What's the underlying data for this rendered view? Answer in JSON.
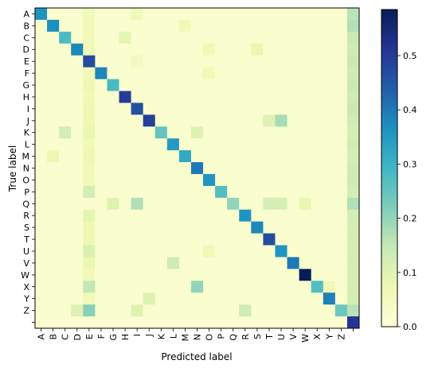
{
  "chart_data": {
    "type": "heatmap",
    "title": "",
    "xlabel": "Predicted label",
    "ylabel": "True label",
    "x_categories": [
      "A",
      "B",
      "C",
      "D",
      "E",
      "F",
      "G",
      "H",
      "I",
      "J",
      "K",
      "L",
      "M",
      "N",
      "O",
      "P",
      "Q",
      "R",
      "S",
      "T",
      "U",
      "V",
      "W",
      "X",
      "Y",
      "Z",
      ""
    ],
    "y_categories": [
      "A",
      "B",
      "C",
      "D",
      "E",
      "F",
      "G",
      "H",
      "I",
      "J",
      "K",
      "L",
      "M",
      "N",
      "O",
      "P",
      "Q",
      "R",
      "S",
      "T",
      "U",
      "V",
      "W",
      "X",
      "Y",
      "Z",
      ""
    ],
    "colorbar": {
      "colormap": "YlGnBu",
      "min": 0.0,
      "max": 0.585,
      "ticks": [
        0.0,
        0.1,
        0.2,
        0.3,
        0.4,
        0.5
      ],
      "tick_labels": [
        "0.0",
        "0.1",
        "0.2",
        "0.3",
        "0.4",
        "0.5"
      ]
    },
    "background_value": 0.02,
    "diagonal": [
      0.36,
      0.37,
      0.28,
      0.38,
      0.47,
      0.38,
      0.28,
      0.5,
      0.46,
      0.49,
      0.25,
      0.35,
      0.32,
      0.4,
      0.36,
      0.27,
      0.2,
      0.36,
      0.38,
      0.47,
      0.36,
      0.4,
      0.585,
      0.27,
      0.39,
      0.24,
      0.51
    ],
    "off_diagonal": [
      {
        "row": "A",
        "col": "E",
        "value": 0.06
      },
      {
        "row": "A",
        "col": "I",
        "value": 0.06
      },
      {
        "row": "A",
        "col": "",
        "value": 0.16
      },
      {
        "row": "B",
        "col": "E",
        "value": 0.06
      },
      {
        "row": "B",
        "col": "M",
        "value": 0.06
      },
      {
        "row": "B",
        "col": "",
        "value": 0.17
      },
      {
        "row": "C",
        "col": "E",
        "value": 0.06
      },
      {
        "row": "C",
        "col": "H",
        "value": 0.09
      },
      {
        "row": "C",
        "col": "",
        "value": 0.14
      },
      {
        "row": "D",
        "col": "E",
        "value": 0.06
      },
      {
        "row": "D",
        "col": "O",
        "value": 0.06
      },
      {
        "row": "D",
        "col": "S",
        "value": 0.08
      },
      {
        "row": "D",
        "col": "",
        "value": 0.13
      },
      {
        "row": "E",
        "col": "I",
        "value": 0.05
      },
      {
        "row": "E",
        "col": "",
        "value": 0.14
      },
      {
        "row": "F",
        "col": "E",
        "value": 0.06
      },
      {
        "row": "F",
        "col": "O",
        "value": 0.06
      },
      {
        "row": "F",
        "col": "",
        "value": 0.13
      },
      {
        "row": "G",
        "col": "E",
        "value": 0.07
      },
      {
        "row": "G",
        "col": "",
        "value": 0.14
      },
      {
        "row": "H",
        "col": "E",
        "value": 0.06
      },
      {
        "row": "H",
        "col": "",
        "value": 0.13
      },
      {
        "row": "I",
        "col": "E",
        "value": 0.07
      },
      {
        "row": "I",
        "col": "",
        "value": 0.14
      },
      {
        "row": "J",
        "col": "E",
        "value": 0.07
      },
      {
        "row": "J",
        "col": "T",
        "value": 0.1
      },
      {
        "row": "J",
        "col": "U",
        "value": 0.18
      },
      {
        "row": "J",
        "col": "",
        "value": 0.13
      },
      {
        "row": "K",
        "col": "C",
        "value": 0.12
      },
      {
        "row": "K",
        "col": "E",
        "value": 0.08
      },
      {
        "row": "K",
        "col": "N",
        "value": 0.1
      },
      {
        "row": "K",
        "col": "",
        "value": 0.12
      },
      {
        "row": "L",
        "col": "E",
        "value": 0.06
      },
      {
        "row": "L",
        "col": "",
        "value": 0.13
      },
      {
        "row": "M",
        "col": "B",
        "value": 0.07
      },
      {
        "row": "M",
        "col": "E",
        "value": 0.07
      },
      {
        "row": "M",
        "col": "",
        "value": 0.12
      },
      {
        "row": "N",
        "col": "E",
        "value": 0.06
      },
      {
        "row": "N",
        "col": "",
        "value": 0.13
      },
      {
        "row": "O",
        "col": "E",
        "value": 0.06
      },
      {
        "row": "O",
        "col": "",
        "value": 0.13
      },
      {
        "row": "P",
        "col": "E",
        "value": 0.12
      },
      {
        "row": "P",
        "col": "",
        "value": 0.12
      },
      {
        "row": "Q",
        "col": "G",
        "value": 0.1
      },
      {
        "row": "Q",
        "col": "I",
        "value": 0.17
      },
      {
        "row": "Q",
        "col": "T",
        "value": 0.12
      },
      {
        "row": "Q",
        "col": "U",
        "value": 0.12
      },
      {
        "row": "Q",
        "col": "W",
        "value": 0.08
      },
      {
        "row": "Q",
        "col": "",
        "value": 0.17
      },
      {
        "row": "R",
        "col": "E",
        "value": 0.09
      },
      {
        "row": "R",
        "col": "",
        "value": 0.12
      },
      {
        "row": "S",
        "col": "E",
        "value": 0.07
      },
      {
        "row": "S",
        "col": "",
        "value": 0.12
      },
      {
        "row": "T",
        "col": "E",
        "value": 0.07
      },
      {
        "row": "T",
        "col": "",
        "value": 0.12
      },
      {
        "row": "U",
        "col": "E",
        "value": 0.11
      },
      {
        "row": "U",
        "col": "O",
        "value": 0.06
      },
      {
        "row": "U",
        "col": "",
        "value": 0.12
      },
      {
        "row": "V",
        "col": "E",
        "value": 0.08
      },
      {
        "row": "V",
        "col": "L",
        "value": 0.13
      },
      {
        "row": "V",
        "col": "",
        "value": 0.12
      },
      {
        "row": "W",
        "col": "E",
        "value": 0.06
      },
      {
        "row": "W",
        "col": "",
        "value": 0.12
      },
      {
        "row": "X",
        "col": "E",
        "value": 0.15
      },
      {
        "row": "X",
        "col": "N",
        "value": 0.2
      },
      {
        "row": "X",
        "col": "Y",
        "value": 0.06
      },
      {
        "row": "X",
        "col": "",
        "value": 0.12
      },
      {
        "row": "Y",
        "col": "J",
        "value": 0.1
      },
      {
        "row": "Y",
        "col": "E",
        "value": 0.06
      },
      {
        "row": "Y",
        "col": "",
        "value": 0.12
      },
      {
        "row": "Z",
        "col": "E",
        "value": 0.21
      },
      {
        "row": "Z",
        "col": "D",
        "value": 0.1
      },
      {
        "row": "Z",
        "col": "I",
        "value": 0.1
      },
      {
        "row": "Z",
        "col": "R",
        "value": 0.13
      },
      {
        "row": "Z",
        "col": "",
        "value": 0.16
      }
    ]
  }
}
